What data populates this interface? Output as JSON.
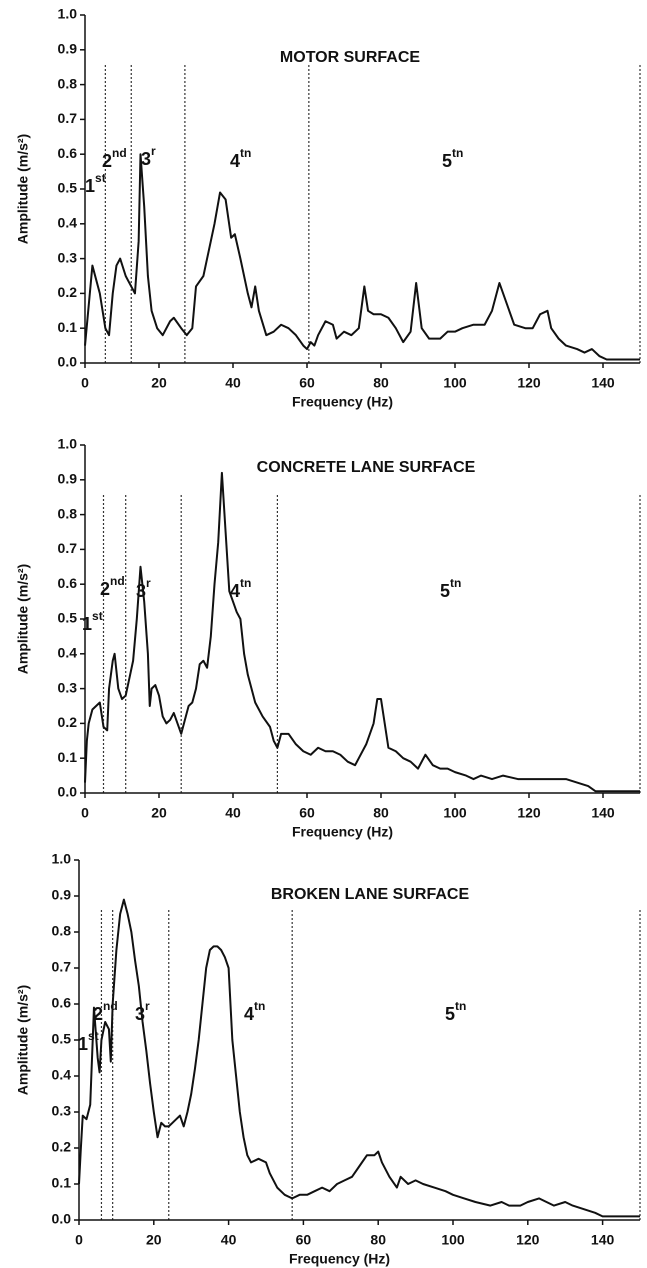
{
  "chart_data": [
    {
      "type": "line",
      "title": "MOTOR SURFACE",
      "xlabel": "Frequency (Hz)",
      "ylabel": "Amplitude (m/s²)",
      "xlim": [
        0,
        150
      ],
      "xticks": [
        0,
        20,
        40,
        60,
        80,
        100,
        120,
        140
      ],
      "ylim": [
        0,
        1
      ],
      "yticks": [
        {
          "value": 0,
          "label": "0.0"
        },
        {
          "value": 0.1,
          "label": "0.1"
        },
        {
          "value": 0.2,
          "label": "0.2"
        },
        {
          "value": 0.3,
          "label": "0.3"
        },
        {
          "value": 0.4,
          "label": "0.4"
        },
        {
          "value": 0.5,
          "label": "0.5"
        },
        {
          "value": 0.6,
          "label": "0.6"
        },
        {
          "value": 0.7,
          "label": "0.7"
        },
        {
          "value": 0.8,
          "label": "0.8"
        },
        {
          "value": 0.9,
          "label": "0.9"
        },
        {
          "value": 1,
          "label": "1.0"
        }
      ],
      "dividers": [
        5.5,
        12.5,
        27,
        60.5,
        150
      ],
      "annotations": [
        {
          "text": "1",
          "sup": "st"
        },
        {
          "text": "2",
          "sup": "nd"
        },
        {
          "text": "3",
          "sup": "r"
        },
        {
          "text": "4",
          "sup": "tn"
        },
        {
          "text": "5",
          "sup": "tn"
        }
      ],
      "x": [
        0,
        2,
        4,
        5.5,
        6.5,
        7.5,
        8.5,
        9.5,
        11,
        12.5,
        13.5,
        14.5,
        15,
        16,
        17,
        18,
        19.5,
        21,
        23,
        24,
        26,
        27.5,
        29,
        30,
        32,
        33,
        35,
        36.5,
        38,
        39.5,
        40.5,
        42,
        44,
        45,
        46,
        47,
        49,
        51,
        53,
        55,
        57,
        59,
        60,
        61,
        62,
        63,
        65,
        67,
        68,
        70,
        72,
        74,
        75.5,
        76.5,
        78,
        80,
        82,
        84,
        86,
        88,
        89.5,
        91,
        93,
        96,
        98,
        100,
        102,
        105,
        108,
        110,
        112,
        114,
        116,
        119,
        121,
        123,
        125,
        126,
        128,
        130,
        133,
        135,
        137,
        139,
        141,
        145,
        150
      ],
      "series": [
        {
          "color": "#111111",
          "values": [
            0.05,
            0.28,
            0.2,
            0.1,
            0.08,
            0.2,
            0.28,
            0.3,
            0.25,
            0.22,
            0.2,
            0.35,
            0.6,
            0.45,
            0.25,
            0.15,
            0.1,
            0.08,
            0.12,
            0.13,
            0.1,
            0.08,
            0.1,
            0.22,
            0.25,
            0.3,
            0.4,
            0.49,
            0.47,
            0.36,
            0.37,
            0.3,
            0.2,
            0.16,
            0.22,
            0.15,
            0.08,
            0.09,
            0.11,
            0.1,
            0.08,
            0.05,
            0.04,
            0.06,
            0.05,
            0.08,
            0.12,
            0.11,
            0.07,
            0.09,
            0.08,
            0.1,
            0.22,
            0.15,
            0.14,
            0.14,
            0.13,
            0.1,
            0.06,
            0.09,
            0.23,
            0.1,
            0.07,
            0.07,
            0.09,
            0.09,
            0.1,
            0.11,
            0.11,
            0.15,
            0.23,
            0.17,
            0.11,
            0.1,
            0.1,
            0.14,
            0.15,
            0.1,
            0.07,
            0.05,
            0.04,
            0.03,
            0.04,
            0.02,
            0.01,
            0.01,
            0.01
          ]
        }
      ]
    },
    {
      "type": "line",
      "title": "CONCRETE LANE SURFACE",
      "xlabel": "Frequency (Hz)",
      "ylabel": "Amplitude (m/s²)",
      "xlim": [
        0,
        150
      ],
      "xticks": [
        0,
        20,
        40,
        60,
        80,
        100,
        120,
        140
      ],
      "ylim": [
        0,
        1
      ],
      "yticks": [
        {
          "value": 0,
          "label": "0.0"
        },
        {
          "value": 0.1,
          "label": "0.1"
        },
        {
          "value": 0.2,
          "label": "0.2"
        },
        {
          "value": 0.3,
          "label": "0.3"
        },
        {
          "value": 0.4,
          "label": "0.4"
        },
        {
          "value": 0.5,
          "label": "0.5"
        },
        {
          "value": 0.6,
          "label": "0.6"
        },
        {
          "value": 0.7,
          "label": "0.7"
        },
        {
          "value": 0.8,
          "label": "0.8"
        },
        {
          "value": 0.9,
          "label": "0.9"
        },
        {
          "value": 1,
          "label": "1.0"
        }
      ],
      "dividers": [
        5,
        11,
        26,
        52,
        150
      ],
      "annotations": [
        {
          "text": "1",
          "sup": "st"
        },
        {
          "text": "2",
          "sup": "nd"
        },
        {
          "text": "3",
          "sup": "r"
        },
        {
          "text": "4",
          "sup": "tn"
        },
        {
          "text": "5",
          "sup": "tn"
        }
      ],
      "x": [
        0,
        0.5,
        1,
        2,
        3,
        4,
        5,
        6,
        6.5,
        7.5,
        8,
        9,
        10,
        11,
        12,
        13,
        14,
        15,
        16,
        17,
        17.5,
        18,
        19,
        20,
        21,
        22,
        23,
        24,
        25,
        26,
        27,
        28,
        29,
        30,
        31,
        32,
        33,
        34,
        35,
        36,
        37,
        38,
        39,
        40,
        41,
        42,
        43,
        44,
        46,
        48,
        50,
        51,
        52,
        53,
        55,
        57,
        59,
        61,
        63,
        65,
        67,
        69,
        71,
        73,
        74,
        76,
        78,
        79,
        80,
        81,
        82,
        84,
        86,
        88,
        90,
        92,
        94,
        96,
        98,
        100,
        103,
        105,
        107,
        110,
        113,
        117,
        120,
        125,
        130,
        133,
        136,
        138,
        142,
        150
      ],
      "series": [
        {
          "color": "#111111",
          "values": [
            0.03,
            0.15,
            0.2,
            0.24,
            0.25,
            0.26,
            0.19,
            0.18,
            0.3,
            0.38,
            0.4,
            0.3,
            0.27,
            0.28,
            0.33,
            0.38,
            0.5,
            0.65,
            0.55,
            0.4,
            0.25,
            0.3,
            0.31,
            0.28,
            0.22,
            0.2,
            0.21,
            0.23,
            0.2,
            0.17,
            0.21,
            0.25,
            0.26,
            0.3,
            0.37,
            0.38,
            0.36,
            0.45,
            0.6,
            0.72,
            0.92,
            0.75,
            0.58,
            0.55,
            0.52,
            0.5,
            0.4,
            0.34,
            0.26,
            0.22,
            0.19,
            0.15,
            0.13,
            0.17,
            0.17,
            0.14,
            0.12,
            0.11,
            0.13,
            0.12,
            0.12,
            0.11,
            0.09,
            0.08,
            0.1,
            0.14,
            0.2,
            0.27,
            0.27,
            0.2,
            0.13,
            0.12,
            0.1,
            0.09,
            0.07,
            0.11,
            0.08,
            0.07,
            0.07,
            0.06,
            0.05,
            0.04,
            0.05,
            0.04,
            0.05,
            0.04,
            0.04,
            0.04,
            0.04,
            0.03,
            0.02,
            0.005,
            0.005,
            0.005
          ]
        }
      ]
    },
    {
      "type": "line",
      "title": "BROKEN LANE SURFACE",
      "xlabel": "Frequency (Hz)",
      "ylabel": "Amplitude (m/s²)",
      "xlim": [
        0,
        150
      ],
      "xticks": [
        0,
        20,
        40,
        60,
        80,
        100,
        120,
        140
      ],
      "ylim": [
        0,
        1
      ],
      "yticks": [
        {
          "value": 0,
          "label": "0.0"
        },
        {
          "value": 0.1,
          "label": "0.1"
        },
        {
          "value": 0.2,
          "label": "0.2"
        },
        {
          "value": 0.3,
          "label": "0.3"
        },
        {
          "value": 0.4,
          "label": "0.4"
        },
        {
          "value": 0.5,
          "label": "0.5"
        },
        {
          "value": 0.6,
          "label": "0.6"
        },
        {
          "value": 0.7,
          "label": "0.7"
        },
        {
          "value": 0.8,
          "label": "0.8"
        },
        {
          "value": 0.9,
          "label": "0.9"
        },
        {
          "value": 1,
          "label": "1.0"
        }
      ],
      "dividers": [
        6,
        9,
        24,
        57,
        150
      ],
      "annotations": [
        {
          "text": "1",
          "sup": "st"
        },
        {
          "text": "2",
          "sup": "nd"
        },
        {
          "text": "3",
          "sup": "r"
        },
        {
          "text": "4",
          "sup": "tn"
        },
        {
          "text": "5",
          "sup": "tn"
        }
      ],
      "x": [
        0,
        0.5,
        1,
        2,
        3,
        4,
        5,
        5.5,
        6,
        7,
        8,
        8.5,
        9,
        10,
        11,
        12,
        13,
        14,
        15,
        16,
        17,
        18,
        19,
        20,
        21,
        22,
        23,
        24,
        25,
        26,
        27,
        28,
        29,
        30,
        31,
        32,
        33,
        34,
        35,
        36,
        37,
        38,
        39,
        40,
        41,
        42,
        43,
        44,
        45,
        46,
        48,
        50,
        51,
        53,
        55,
        57,
        59,
        61,
        63,
        65,
        67,
        69,
        71,
        73,
        75,
        77,
        79,
        80,
        81,
        83,
        85,
        86,
        88,
        90,
        92,
        95,
        98,
        100,
        103,
        106,
        110,
        113,
        115,
        118,
        120,
        123,
        125,
        127,
        130,
        132,
        135,
        138,
        140,
        145,
        150
      ],
      "series": [
        {
          "color": "#111111",
          "values": [
            0.1,
            0.2,
            0.29,
            0.28,
            0.32,
            0.59,
            0.45,
            0.41,
            0.5,
            0.55,
            0.53,
            0.44,
            0.6,
            0.75,
            0.85,
            0.89,
            0.85,
            0.8,
            0.72,
            0.65,
            0.55,
            0.47,
            0.38,
            0.3,
            0.23,
            0.27,
            0.26,
            0.26,
            0.27,
            0.28,
            0.29,
            0.26,
            0.3,
            0.35,
            0.42,
            0.5,
            0.6,
            0.7,
            0.75,
            0.76,
            0.76,
            0.75,
            0.73,
            0.7,
            0.5,
            0.4,
            0.3,
            0.23,
            0.18,
            0.16,
            0.17,
            0.16,
            0.13,
            0.09,
            0.07,
            0.06,
            0.07,
            0.07,
            0.08,
            0.09,
            0.08,
            0.1,
            0.11,
            0.12,
            0.15,
            0.18,
            0.18,
            0.19,
            0.16,
            0.12,
            0.09,
            0.12,
            0.1,
            0.11,
            0.1,
            0.09,
            0.08,
            0.07,
            0.06,
            0.05,
            0.04,
            0.05,
            0.04,
            0.04,
            0.05,
            0.06,
            0.05,
            0.04,
            0.05,
            0.04,
            0.03,
            0.02,
            0.01,
            0.01,
            0.01
          ]
        }
      ]
    }
  ]
}
